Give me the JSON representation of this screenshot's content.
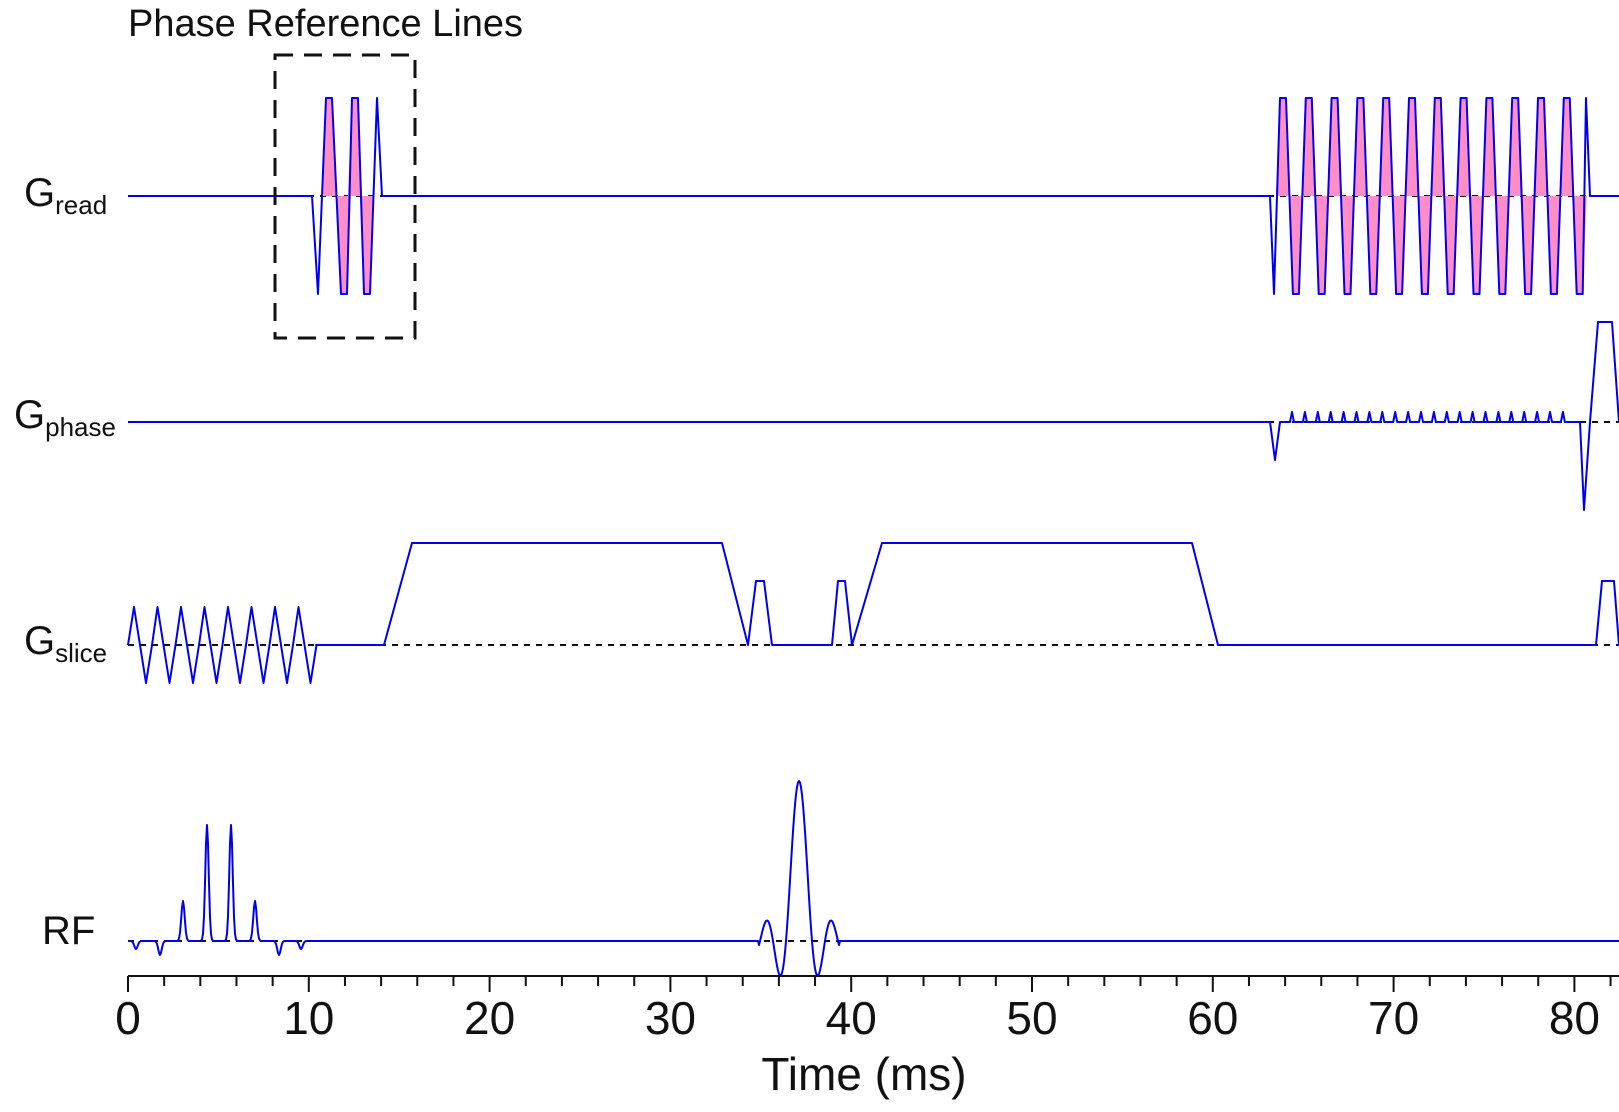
{
  "annotation": "Phase Reference Lines",
  "channels": [
    {
      "key": "read",
      "base": "G",
      "sub": "read"
    },
    {
      "key": "phase",
      "base": "G",
      "sub": "phase"
    },
    {
      "key": "slice",
      "base": "G",
      "sub": "slice"
    },
    {
      "key": "rf",
      "base": "RF",
      "sub": ""
    }
  ],
  "axis": {
    "label": "Time (ms)",
    "range": [
      0,
      82.5
    ],
    "major_ticks": [
      0,
      10,
      20,
      30,
      40,
      50,
      60,
      70,
      80
    ],
    "minor_step": 2
  },
  "colors": {
    "waveform": "#0000ee",
    "fill": "#ff8ec7",
    "baseline": "#111111"
  }
}
